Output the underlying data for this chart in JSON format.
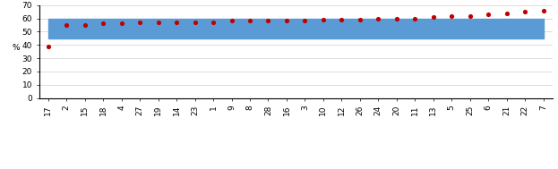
{
  "x_labels": [
    "17",
    "2",
    "15",
    "18",
    "4",
    "27",
    "19",
    "14",
    "23",
    "1",
    "9",
    "8",
    "28",
    "16",
    "3",
    "10",
    "12",
    "26",
    "24",
    "20",
    "11",
    "13",
    "5",
    "25",
    "6",
    "21",
    "22",
    "7"
  ],
  "dot_values": [
    39,
    55,
    55,
    56,
    56,
    57,
    57,
    57,
    57,
    57,
    58,
    58,
    58,
    58,
    58,
    59,
    59,
    59,
    60,
    60,
    60,
    61,
    62,
    62,
    63,
    64,
    65,
    66
  ],
  "band_low": 45,
  "band_high": 60,
  "ylim": [
    0,
    70
  ],
  "yticks": [
    0,
    10,
    20,
    30,
    40,
    50,
    60,
    70
  ],
  "ylabel": "%",
  "band_color": "#5b9bd5",
  "band_alpha": 1.0,
  "dot_color": "#c00000",
  "axis_fontsize": 6.5,
  "legend_fontsize": 6.5
}
